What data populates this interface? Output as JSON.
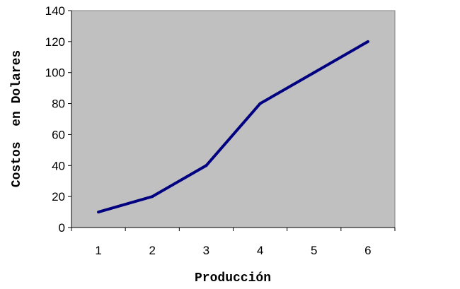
{
  "chart_data": {
    "type": "line",
    "x": [
      1,
      2,
      3,
      4,
      5,
      6
    ],
    "series": [
      {
        "values": [
          10,
          20,
          40,
          80,
          100,
          120
        ]
      }
    ],
    "xlabel": "Producción",
    "ylabel": "Costos  en Dolares",
    "ylim": [
      0,
      140
    ],
    "yticks": [
      0,
      20,
      40,
      60,
      80,
      100,
      120,
      140
    ],
    "xticks": [
      "1",
      "2",
      "3",
      "4",
      "5",
      "6"
    ],
    "grid": false,
    "legend": "none",
    "colors": {
      "plot_background": "#c0c0c0",
      "line": "#000080",
      "axis": "#000000"
    }
  }
}
